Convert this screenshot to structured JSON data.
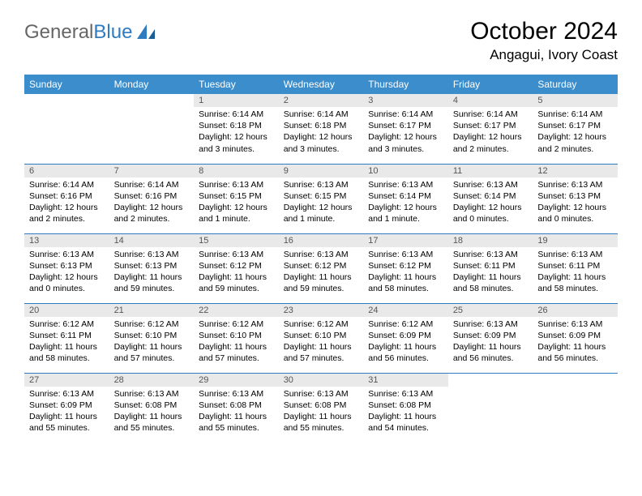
{
  "logo": {
    "general": "General",
    "blue": "Blue"
  },
  "title": "October 2024",
  "location": "Angagui, Ivory Coast",
  "colors": {
    "header_bg": "#3c8dcc",
    "header_text": "#ffffff",
    "daynum_bg": "#e9e9e9",
    "border": "#2e7bc0"
  },
  "weekdays": [
    "Sunday",
    "Monday",
    "Tuesday",
    "Wednesday",
    "Thursday",
    "Friday",
    "Saturday"
  ],
  "days": {
    "d1": {
      "n": "1",
      "sr": "Sunrise: 6:14 AM",
      "ss": "Sunset: 6:18 PM",
      "dl1": "Daylight: 12 hours",
      "dl2": "and 3 minutes."
    },
    "d2": {
      "n": "2",
      "sr": "Sunrise: 6:14 AM",
      "ss": "Sunset: 6:18 PM",
      "dl1": "Daylight: 12 hours",
      "dl2": "and 3 minutes."
    },
    "d3": {
      "n": "3",
      "sr": "Sunrise: 6:14 AM",
      "ss": "Sunset: 6:17 PM",
      "dl1": "Daylight: 12 hours",
      "dl2": "and 3 minutes."
    },
    "d4": {
      "n": "4",
      "sr": "Sunrise: 6:14 AM",
      "ss": "Sunset: 6:17 PM",
      "dl1": "Daylight: 12 hours",
      "dl2": "and 2 minutes."
    },
    "d5": {
      "n": "5",
      "sr": "Sunrise: 6:14 AM",
      "ss": "Sunset: 6:17 PM",
      "dl1": "Daylight: 12 hours",
      "dl2": "and 2 minutes."
    },
    "d6": {
      "n": "6",
      "sr": "Sunrise: 6:14 AM",
      "ss": "Sunset: 6:16 PM",
      "dl1": "Daylight: 12 hours",
      "dl2": "and 2 minutes."
    },
    "d7": {
      "n": "7",
      "sr": "Sunrise: 6:14 AM",
      "ss": "Sunset: 6:16 PM",
      "dl1": "Daylight: 12 hours",
      "dl2": "and 2 minutes."
    },
    "d8": {
      "n": "8",
      "sr": "Sunrise: 6:13 AM",
      "ss": "Sunset: 6:15 PM",
      "dl1": "Daylight: 12 hours",
      "dl2": "and 1 minute."
    },
    "d9": {
      "n": "9",
      "sr": "Sunrise: 6:13 AM",
      "ss": "Sunset: 6:15 PM",
      "dl1": "Daylight: 12 hours",
      "dl2": "and 1 minute."
    },
    "d10": {
      "n": "10",
      "sr": "Sunrise: 6:13 AM",
      "ss": "Sunset: 6:14 PM",
      "dl1": "Daylight: 12 hours",
      "dl2": "and 1 minute."
    },
    "d11": {
      "n": "11",
      "sr": "Sunrise: 6:13 AM",
      "ss": "Sunset: 6:14 PM",
      "dl1": "Daylight: 12 hours",
      "dl2": "and 0 minutes."
    },
    "d12": {
      "n": "12",
      "sr": "Sunrise: 6:13 AM",
      "ss": "Sunset: 6:13 PM",
      "dl1": "Daylight: 12 hours",
      "dl2": "and 0 minutes."
    },
    "d13": {
      "n": "13",
      "sr": "Sunrise: 6:13 AM",
      "ss": "Sunset: 6:13 PM",
      "dl1": "Daylight: 12 hours",
      "dl2": "and 0 minutes."
    },
    "d14": {
      "n": "14",
      "sr": "Sunrise: 6:13 AM",
      "ss": "Sunset: 6:13 PM",
      "dl1": "Daylight: 11 hours",
      "dl2": "and 59 minutes."
    },
    "d15": {
      "n": "15",
      "sr": "Sunrise: 6:13 AM",
      "ss": "Sunset: 6:12 PM",
      "dl1": "Daylight: 11 hours",
      "dl2": "and 59 minutes."
    },
    "d16": {
      "n": "16",
      "sr": "Sunrise: 6:13 AM",
      "ss": "Sunset: 6:12 PM",
      "dl1": "Daylight: 11 hours",
      "dl2": "and 59 minutes."
    },
    "d17": {
      "n": "17",
      "sr": "Sunrise: 6:13 AM",
      "ss": "Sunset: 6:12 PM",
      "dl1": "Daylight: 11 hours",
      "dl2": "and 58 minutes."
    },
    "d18": {
      "n": "18",
      "sr": "Sunrise: 6:13 AM",
      "ss": "Sunset: 6:11 PM",
      "dl1": "Daylight: 11 hours",
      "dl2": "and 58 minutes."
    },
    "d19": {
      "n": "19",
      "sr": "Sunrise: 6:13 AM",
      "ss": "Sunset: 6:11 PM",
      "dl1": "Daylight: 11 hours",
      "dl2": "and 58 minutes."
    },
    "d20": {
      "n": "20",
      "sr": "Sunrise: 6:12 AM",
      "ss": "Sunset: 6:11 PM",
      "dl1": "Daylight: 11 hours",
      "dl2": "and 58 minutes."
    },
    "d21": {
      "n": "21",
      "sr": "Sunrise: 6:12 AM",
      "ss": "Sunset: 6:10 PM",
      "dl1": "Daylight: 11 hours",
      "dl2": "and 57 minutes."
    },
    "d22": {
      "n": "22",
      "sr": "Sunrise: 6:12 AM",
      "ss": "Sunset: 6:10 PM",
      "dl1": "Daylight: 11 hours",
      "dl2": "and 57 minutes."
    },
    "d23": {
      "n": "23",
      "sr": "Sunrise: 6:12 AM",
      "ss": "Sunset: 6:10 PM",
      "dl1": "Daylight: 11 hours",
      "dl2": "and 57 minutes."
    },
    "d24": {
      "n": "24",
      "sr": "Sunrise: 6:12 AM",
      "ss": "Sunset: 6:09 PM",
      "dl1": "Daylight: 11 hours",
      "dl2": "and 56 minutes."
    },
    "d25": {
      "n": "25",
      "sr": "Sunrise: 6:13 AM",
      "ss": "Sunset: 6:09 PM",
      "dl1": "Daylight: 11 hours",
      "dl2": "and 56 minutes."
    },
    "d26": {
      "n": "26",
      "sr": "Sunrise: 6:13 AM",
      "ss": "Sunset: 6:09 PM",
      "dl1": "Daylight: 11 hours",
      "dl2": "and 56 minutes."
    },
    "d27": {
      "n": "27",
      "sr": "Sunrise: 6:13 AM",
      "ss": "Sunset: 6:09 PM",
      "dl1": "Daylight: 11 hours",
      "dl2": "and 55 minutes."
    },
    "d28": {
      "n": "28",
      "sr": "Sunrise: 6:13 AM",
      "ss": "Sunset: 6:08 PM",
      "dl1": "Daylight: 11 hours",
      "dl2": "and 55 minutes."
    },
    "d29": {
      "n": "29",
      "sr": "Sunrise: 6:13 AM",
      "ss": "Sunset: 6:08 PM",
      "dl1": "Daylight: 11 hours",
      "dl2": "and 55 minutes."
    },
    "d30": {
      "n": "30",
      "sr": "Sunrise: 6:13 AM",
      "ss": "Sunset: 6:08 PM",
      "dl1": "Daylight: 11 hours",
      "dl2": "and 55 minutes."
    },
    "d31": {
      "n": "31",
      "sr": "Sunrise: 6:13 AM",
      "ss": "Sunset: 6:08 PM",
      "dl1": "Daylight: 11 hours",
      "dl2": "and 54 minutes."
    }
  },
  "layout": [
    [
      null,
      null,
      "d1",
      "d2",
      "d3",
      "d4",
      "d5"
    ],
    [
      "d6",
      "d7",
      "d8",
      "d9",
      "d10",
      "d11",
      "d12"
    ],
    [
      "d13",
      "d14",
      "d15",
      "d16",
      "d17",
      "d18",
      "d19"
    ],
    [
      "d20",
      "d21",
      "d22",
      "d23",
      "d24",
      "d25",
      "d26"
    ],
    [
      "d27",
      "d28",
      "d29",
      "d30",
      "d31",
      null,
      null
    ]
  ]
}
